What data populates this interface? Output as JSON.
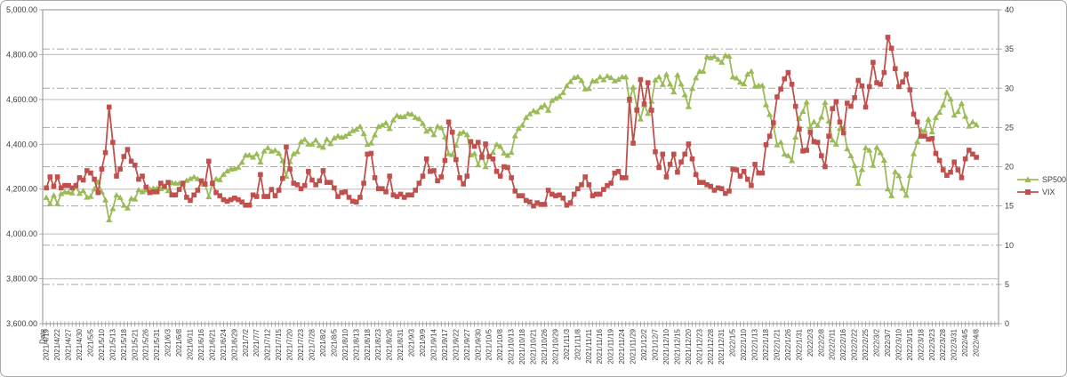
{
  "chart_data": {
    "type": "line",
    "title": "",
    "legend": {
      "position": "right",
      "entries": [
        "SP500",
        "VIX"
      ]
    },
    "x_axis": {
      "header_label": "Date",
      "points_per_tick": 3,
      "tick_labels": [
        "2021/4/19",
        "2021/4/22",
        "2021/4/27",
        "2021/4/30",
        "2021/5/5",
        "2021/5/10",
        "2021/5/13",
        "2021/5/18",
        "2021/5/21",
        "2021/5/26",
        "2021/5/31",
        "2021/6/3",
        "2021/6/8",
        "2021/6/11",
        "2021/6/16",
        "2021/6/21",
        "2021/6/24",
        "2021/6/29",
        "2021/7/2",
        "2021/7/7",
        "2021/7/12",
        "2021/7/15",
        "2021/7/20",
        "2021/7/23",
        "2021/7/28",
        "2021/8/2",
        "2021/8/5",
        "2021/8/10",
        "2021/8/13",
        "2021/8/18",
        "2021/8/23",
        "2021/8/26",
        "2021/8/31",
        "2021/9/3",
        "2021/9/9",
        "2021/9/14",
        "2021/9/17",
        "2021/9/22",
        "2021/9/27",
        "2021/9/30",
        "2021/10/5",
        "2021/10/8",
        "2021/10/13",
        "2021/10/18",
        "2021/10/21",
        "2021/10/26",
        "2021/10/29",
        "2021/11/3",
        "2021/11/8",
        "2021/11/11",
        "2021/11/16",
        "2021/11/19",
        "2021/11/24",
        "2021/11/29",
        "2021/12/2",
        "2021/12/7",
        "2021/12/10",
        "2021/12/15",
        "2021/12/20",
        "2021/12/23",
        "2021/12/28",
        "2021/12/31",
        "2022/1/5",
        "2022/1/10",
        "2022/1/13",
        "2022/1/18",
        "2022/1/21",
        "2022/1/26",
        "2022/1/31",
        "2022/2/3",
        "2022/2/8",
        "2022/2/11",
        "2022/2/16",
        "2022/2/22",
        "2022/2/25",
        "2022/3/2",
        "2022/3/7",
        "2022/3/10",
        "2022/3/15",
        "2022/3/18",
        "2022/3/23",
        "2022/3/28",
        "2022/3/31",
        "2022/4/5",
        "2022/4/8"
      ]
    },
    "y_axis_left": {
      "series": "SP500",
      "min": 3600,
      "max": 5000,
      "step": 200,
      "tick_labels": [
        "5,000.00",
        "4,800.00",
        "4,600.00",
        "4,400.00",
        "4,200.00",
        "4,000.00",
        "3,800.00",
        "3,600.00"
      ],
      "gridline_style": "solid"
    },
    "y_axis_right": {
      "series": "VIX",
      "min": 0,
      "max": 40,
      "step": 5,
      "tick_labels": [
        "40",
        "35",
        "30",
        "25",
        "20",
        "15",
        "10",
        "5",
        "0"
      ],
      "gridline_style": "dash-dot"
    },
    "series": [
      {
        "name": "SP500",
        "color": "#9BBB59",
        "marker": "triangle",
        "axis": "left",
        "values": [
          4163,
          4135,
          4173,
          4135,
          4180,
          4188,
          4187,
          4183,
          4211,
          4181,
          4193,
          4164,
          4168,
          4201,
          4233,
          4188,
          4152,
          4063,
          4113,
          4174,
          4163,
          4128,
          4116,
          4159,
          4156,
          4197,
          4188,
          4196,
          4201,
          4204,
          4204,
          4202,
          4208,
          4193,
          4230,
          4227,
          4227,
          4220,
          4239,
          4247,
          4255,
          4246,
          4224,
          4222,
          4166,
          4225,
          4246,
          4242,
          4266,
          4281,
          4290,
          4292,
          4298,
          4320,
          4352,
          4352,
          4343,
          4358,
          4321,
          4370,
          4385,
          4369,
          4374,
          4360,
          4327,
          4258,
          4323,
          4358,
          4367,
          4412,
          4422,
          4401,
          4401,
          4419,
          4395,
          4387,
          4423,
          4403,
          4429,
          4437,
          4432,
          4437,
          4448,
          4461,
          4468,
          4480,
          4448,
          4400,
          4406,
          4442,
          4480,
          4486,
          4496,
          4470,
          4509,
          4529,
          4523,
          4524,
          4537,
          4535,
          4520,
          4514,
          4493,
          4459,
          4469,
          4443,
          4481,
          4474,
          4433,
          4358,
          4354,
          4396,
          4449,
          4455,
          4443,
          4353,
          4359,
          4308,
          4357,
          4300,
          4346,
          4364,
          4400,
          4391,
          4361,
          4351,
          4364,
          4438,
          4471,
          4486,
          4520,
          4536,
          4550,
          4545,
          4566,
          4575,
          4552,
          4596,
          4605,
          4614,
          4631,
          4661,
          4680,
          4698,
          4702,
          4685,
          4647,
          4649,
          4683,
          4683,
          4701,
          4688,
          4705,
          4698,
          4683,
          4690,
          4701,
          4701,
          4595,
          4655,
          4567,
          4513,
          4577,
          4538,
          4592,
          4687,
          4701,
          4667,
          4712,
          4669,
          4634,
          4710,
          4669,
          4621,
          4568,
          4649,
          4697,
          4726,
          4726,
          4791,
          4786,
          4793,
          4779,
          4766,
          4797,
          4793,
          4701,
          4696,
          4677,
          4670,
          4713,
          4726,
          4659,
          4663,
          4663,
          4577,
          4533,
          4483,
          4398,
          4410,
          4356,
          4350,
          4327,
          4432,
          4516,
          4547,
          4589,
          4477,
          4501,
          4484,
          4522,
          4587,
          4504,
          4419,
          4401,
          4471,
          4475,
          4380,
          4349,
          4305,
          4226,
          4288,
          4385,
          4374,
          4306,
          4387,
          4363,
          4329,
          4201,
          4171,
          4278,
          4260,
          4204,
          4173,
          4262,
          4358,
          4412,
          4463,
          4461,
          4512,
          4456,
          4520,
          4543,
          4576,
          4632,
          4602,
          4530,
          4546,
          4583,
          4525,
          4481,
          4500,
          4488
        ]
      },
      {
        "name": "VIX",
        "color": "#C0504D",
        "marker": "square",
        "axis": "right",
        "values": [
          17.3,
          18.7,
          17.5,
          18.7,
          17.3,
          17.6,
          17.6,
          17.3,
          17.6,
          18.6,
          18.3,
          19.5,
          19.2,
          18.4,
          16.7,
          19.7,
          21.8,
          27.6,
          23.1,
          18.8,
          19.7,
          21.3,
          22.2,
          20.7,
          20.2,
          18.4,
          18.8,
          17.4,
          16.7,
          16.8,
          16.8,
          17.9,
          17.5,
          18.0,
          16.4,
          16.4,
          17.1,
          17.9,
          16.1,
          15.7,
          16.4,
          17.0,
          18.2,
          17.8,
          20.7,
          17.9,
          16.7,
          16.3,
          15.8,
          15.6,
          15.8,
          16.0,
          15.8,
          15.5,
          15.1,
          15.1,
          16.4,
          16.2,
          19.0,
          16.2,
          16.2,
          17.1,
          16.3,
          17.0,
          18.5,
          22.5,
          19.7,
          17.9,
          17.7,
          17.2,
          17.6,
          19.4,
          18.3,
          17.7,
          18.2,
          19.5,
          18.0,
          18.0,
          17.3,
          16.2,
          16.7,
          16.8,
          16.1,
          15.6,
          15.5,
          16.1,
          17.9,
          21.6,
          21.7,
          18.6,
          17.2,
          17.2,
          16.8,
          18.8,
          16.4,
          16.2,
          16.5,
          16.1,
          16.4,
          16.4,
          17.0,
          17.9,
          18.8,
          21.0,
          19.4,
          19.5,
          18.2,
          18.7,
          20.8,
          25.7,
          24.4,
          20.9,
          18.6,
          17.8,
          18.8,
          23.2,
          22.6,
          23.1,
          21.2,
          22.9,
          21.3,
          21.0,
          19.4,
          18.8,
          20.0,
          19.9,
          18.6,
          16.9,
          16.3,
          16.3,
          15.7,
          15.5,
          15.0,
          15.4,
          15.2,
          15.2,
          17.0,
          16.5,
          16.3,
          16.4,
          16.0,
          15.1,
          15.4,
          16.5,
          17.2,
          17.7,
          18.7,
          17.7,
          16.3,
          16.5,
          16.5,
          17.1,
          17.6,
          17.9,
          19.2,
          19.4,
          18.6,
          18.6,
          28.6,
          23.0,
          27.2,
          31.1,
          28.0,
          30.7,
          27.2,
          21.9,
          19.9,
          21.6,
          18.7,
          20.3,
          21.6,
          19.3,
          20.6,
          21.6,
          22.9,
          21.0,
          19.0,
          18.0,
          18.0,
          17.7,
          17.5,
          17.0,
          17.3,
          17.2,
          16.6,
          16.9,
          19.7,
          19.6,
          18.8,
          19.4,
          18.4,
          17.6,
          20.3,
          19.2,
          19.2,
          22.8,
          23.9,
          25.6,
          28.9,
          29.9,
          31.2,
          32.0,
          30.5,
          27.7,
          24.8,
          22.0,
          22.1,
          24.4,
          23.2,
          23.1,
          21.4,
          20.0,
          23.9,
          27.4,
          28.3,
          25.7,
          24.3,
          28.1,
          27.7,
          28.8,
          31.0,
          30.3,
          27.6,
          30.2,
          33.3,
          30.7,
          30.5,
          32.0,
          36.5,
          35.1,
          32.5,
          30.2,
          30.8,
          31.8,
          29.8,
          26.7,
          25.7,
          23.9,
          23.9,
          23.5,
          23.6,
          21.7,
          20.8,
          19.6,
          18.9,
          19.3,
          20.6,
          19.6,
          18.6,
          21.0,
          22.1,
          21.6,
          21.2
        ]
      }
    ]
  }
}
